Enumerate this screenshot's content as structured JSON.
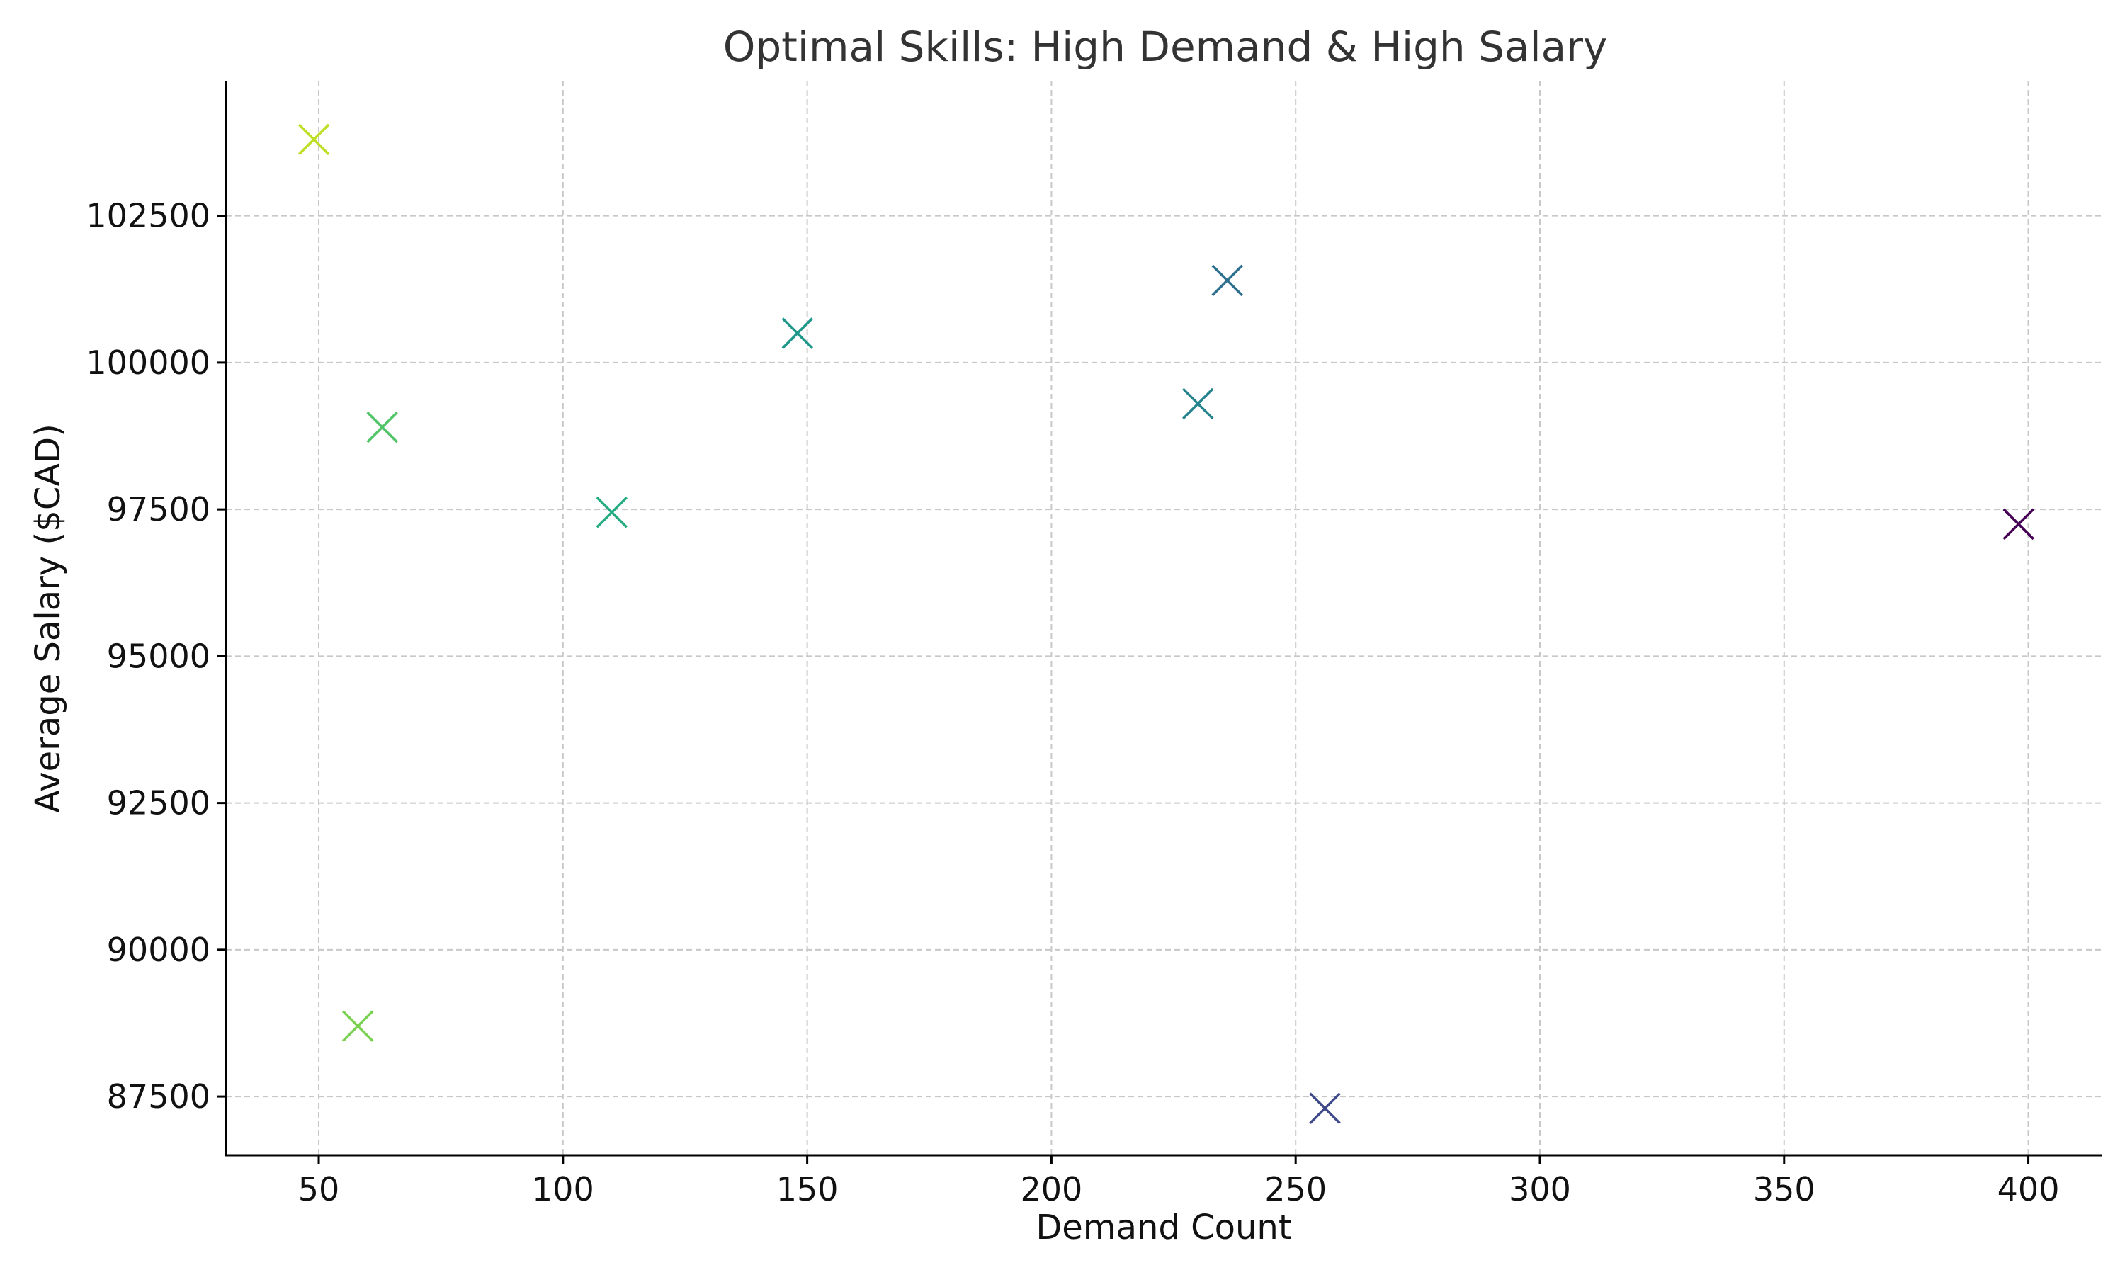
{
  "chart_data": {
    "type": "scatter",
    "title": "Optimal Skills: High Demand & High Salary",
    "xlabel": "Demand Count",
    "ylabel": "Average Salary ($CAD)",
    "xlim": [
      31,
      415
    ],
    "ylim": [
      86500,
      104800
    ],
    "xticks": [
      50,
      100,
      150,
      200,
      250,
      300,
      350,
      400
    ],
    "yticks": [
      87500,
      90000,
      92500,
      95000,
      97500,
      100000,
      102500
    ],
    "grid": true,
    "marker": "x",
    "points": [
      {
        "x": 49,
        "y": 103800,
        "color": "#bddf26"
      },
      {
        "x": 58,
        "y": 88700,
        "color": "#7ad151"
      },
      {
        "x": 63,
        "y": 98900,
        "color": "#52c569"
      },
      {
        "x": 110,
        "y": 97450,
        "color": "#25ab82"
      },
      {
        "x": 148,
        "y": 100500,
        "color": "#1f988b"
      },
      {
        "x": 230,
        "y": 99300,
        "color": "#25838e"
      },
      {
        "x": 236,
        "y": 101400,
        "color": "#2d6f8e"
      },
      {
        "x": 256,
        "y": 87300,
        "color": "#3e4989"
      },
      {
        "x": 398,
        "y": 97250,
        "color": "#440154"
      }
    ]
  }
}
